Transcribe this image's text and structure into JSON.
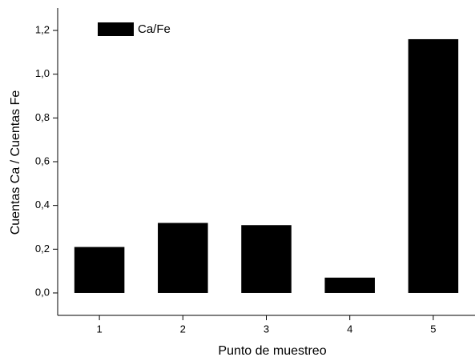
{
  "chart_data": {
    "type": "bar",
    "x_label": "Punto de muestreo",
    "y_label": "Cuentas Ca / Cuentas Fe",
    "categories": [
      "1",
      "2",
      "3",
      "4",
      "5"
    ],
    "series": [
      {
        "name": "Ca/Fe",
        "color": "#000000",
        "values": [
          0.21,
          0.32,
          0.31,
          0.07,
          1.16
        ]
      }
    ],
    "ylim": [
      -0.1,
      1.3
    ],
    "yticks": [
      {
        "value": 0,
        "label": "0,0"
      },
      {
        "value": 0.2,
        "label": "0,2"
      },
      {
        "value": 0.4,
        "label": "0,4"
      },
      {
        "value": 0.6,
        "label": "0,6"
      },
      {
        "value": 0.8,
        "label": "0,8"
      },
      {
        "value": 1.0,
        "label": "1,0"
      },
      {
        "value": 1.2,
        "label": "1,2"
      }
    ],
    "legend": "top-left",
    "grid": false
  }
}
